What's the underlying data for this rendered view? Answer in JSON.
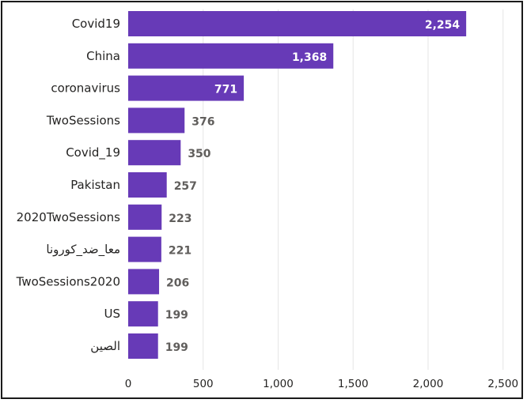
{
  "chart_data": {
    "type": "bar",
    "orientation": "horizontal",
    "categories": [
      "Covid19",
      "China",
      "coronavirus",
      "TwoSessions",
      "Covid_19",
      "Pakistan",
      "2020TwoSessions",
      "معا_ضد_كورونا",
      "TwoSessions2020",
      "US",
      "الصين"
    ],
    "values": [
      2254,
      1368,
      771,
      376,
      350,
      257,
      223,
      221,
      206,
      199,
      199
    ],
    "value_labels": [
      "2,254",
      "1,368",
      "771",
      "376",
      "350",
      "257",
      "223",
      "221",
      "206",
      "199",
      "199"
    ],
    "xticks": [
      0,
      500,
      1000,
      1500,
      2000,
      2500
    ],
    "xtick_labels": [
      "0",
      "500",
      "1,000",
      "1,500",
      "2,000",
      "2,500"
    ],
    "xlim": [
      0,
      2600
    ],
    "grid": true,
    "bar_color": "#673ab7"
  }
}
